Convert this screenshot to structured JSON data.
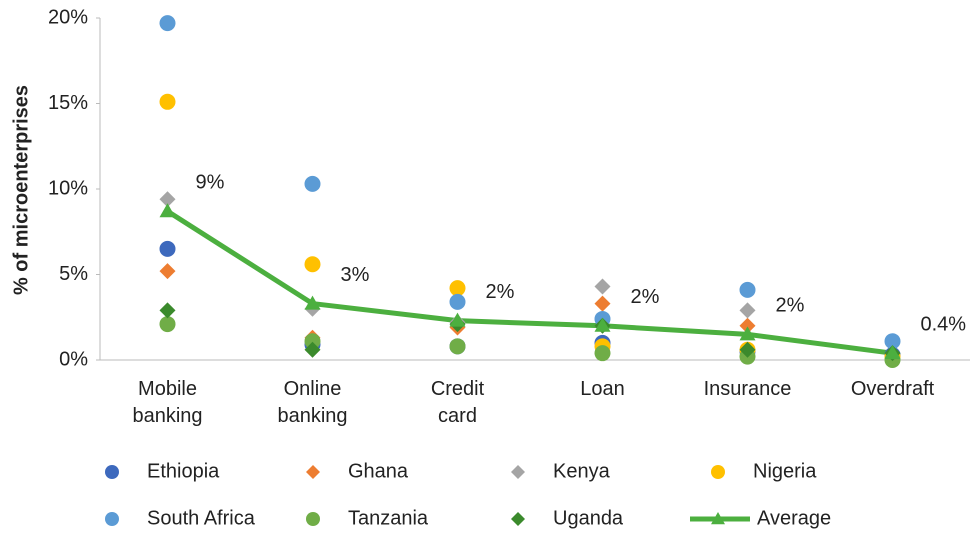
{
  "chart_data": {
    "type": "scatter",
    "ylabel": "% of microenterprises",
    "categories": [
      "Mobile banking",
      "Online banking",
      "Credit card",
      "Loan",
      "Insurance",
      "Overdraft"
    ],
    "ylim": [
      0,
      20
    ],
    "yticks": [
      {
        "value": 0,
        "label": "0%"
      },
      {
        "value": 5,
        "label": "5%"
      },
      {
        "value": 10,
        "label": "10%"
      },
      {
        "value": 15,
        "label": "15%"
      },
      {
        "value": 20,
        "label": "20%"
      }
    ],
    "series": [
      {
        "name": "Ethiopia",
        "color": "#3d69bd",
        "marker": "circle",
        "values": [
          6.5,
          0.9,
          0.8,
          1.0,
          0.5,
          0.3
        ]
      },
      {
        "name": "Ghana",
        "color": "#ed7d31",
        "marker": "diamond",
        "values": [
          5.2,
          1.3,
          1.9,
          3.3,
          2.0,
          0.3
        ]
      },
      {
        "name": "Kenya",
        "color": "#a5a5a5",
        "marker": "diamond",
        "values": [
          9.4,
          3.0,
          2.2,
          4.3,
          2.9,
          0.3
        ]
      },
      {
        "name": "Nigeria",
        "color": "#ffc000",
        "marker": "circle",
        "values": [
          15.1,
          5.6,
          4.2,
          0.8,
          0.6,
          0.2
        ]
      },
      {
        "name": "South Africa",
        "color": "#5b9bd5",
        "marker": "circle",
        "values": [
          19.7,
          10.3,
          3.4,
          2.4,
          4.1,
          1.1
        ]
      },
      {
        "name": "Tanzania",
        "color": "#70ad47",
        "marker": "circle",
        "values": [
          2.1,
          1.1,
          0.8,
          0.4,
          0.2,
          0.0
        ]
      },
      {
        "name": "Uganda",
        "color": "#3b8a2c",
        "marker": "diamond",
        "values": [
          2.9,
          0.6,
          2.1,
          2.0,
          0.6,
          0.4
        ]
      },
      {
        "name": "Average",
        "color": "#4caf3f",
        "marker": "triangle",
        "type": "line",
        "values": [
          8.7,
          3.3,
          2.3,
          2.0,
          1.5,
          0.4
        ],
        "value_labels": [
          "9%",
          "3%",
          "2%",
          "2%",
          "2%",
          "0.4%"
        ]
      }
    ]
  }
}
